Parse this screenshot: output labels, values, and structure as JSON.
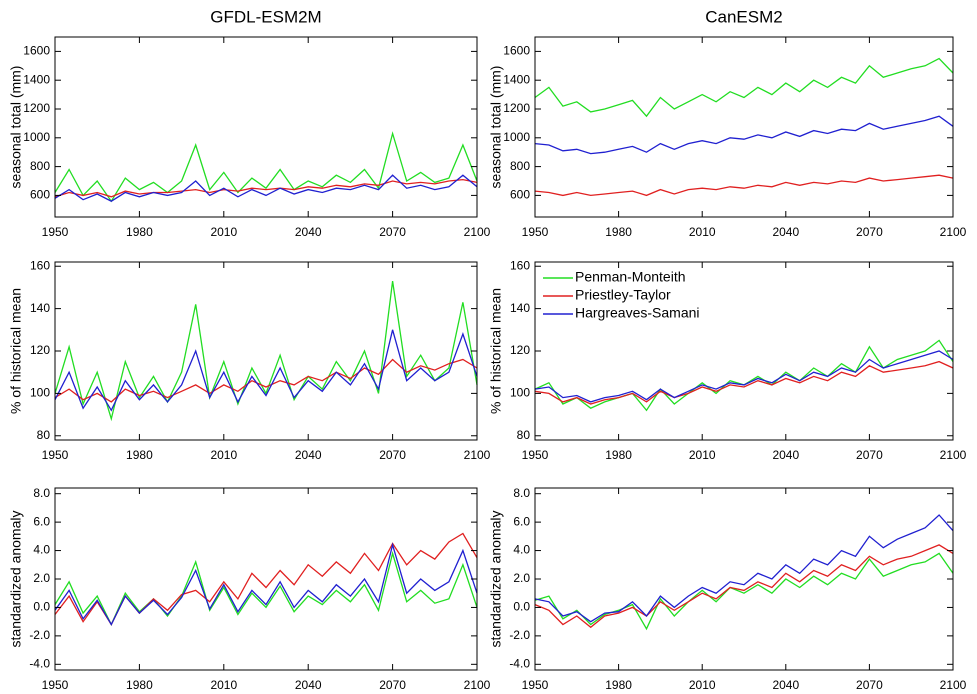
{
  "chart_data": [
    {
      "type": "line",
      "title": "GFDL-ESM2M",
      "y_label": "seasonal total (mm)",
      "x": [
        1950,
        1955,
        1960,
        1965,
        1970,
        1975,
        1980,
        1985,
        1990,
        1995,
        2000,
        2005,
        2010,
        2015,
        2020,
        2025,
        2030,
        2035,
        2040,
        2045,
        2050,
        2055,
        2060,
        2065,
        2070,
        2075,
        2080,
        2085,
        2090,
        2095,
        2100
      ],
      "xlim": [
        1950,
        2100
      ],
      "xticks": [
        1950,
        1980,
        2010,
        2040,
        2070,
        2100
      ],
      "ylim": [
        450,
        1700
      ],
      "yticks": [
        600,
        800,
        1000,
        1200,
        1400,
        1600
      ],
      "series": [
        {
          "color": "#22dd22",
          "values": [
            620,
            780,
            600,
            700,
            560,
            720,
            640,
            690,
            620,
            700,
            950,
            640,
            760,
            620,
            720,
            650,
            780,
            640,
            700,
            660,
            740,
            690,
            780,
            650,
            1030,
            700,
            760,
            690,
            720,
            950,
            700
          ]
        },
        {
          "color": "#e02020",
          "values": [
            590,
            620,
            600,
            620,
            590,
            630,
            610,
            620,
            620,
            630,
            640,
            620,
            640,
            630,
            650,
            640,
            650,
            640,
            660,
            650,
            670,
            660,
            680,
            670,
            700,
            680,
            690,
            680,
            700,
            710,
            690
          ]
        },
        {
          "color": "#2020d0",
          "values": [
            580,
            640,
            570,
            610,
            560,
            620,
            590,
            620,
            600,
            620,
            700,
            600,
            650,
            590,
            640,
            600,
            650,
            610,
            640,
            620,
            650,
            640,
            670,
            640,
            740,
            650,
            670,
            640,
            660,
            740,
            660
          ]
        }
      ]
    },
    {
      "type": "line",
      "title": "CanESM2",
      "y_label": "seasonal total (mm)",
      "x": [
        1950,
        1955,
        1960,
        1965,
        1970,
        1975,
        1980,
        1985,
        1990,
        1995,
        2000,
        2005,
        2010,
        2015,
        2020,
        2025,
        2030,
        2035,
        2040,
        2045,
        2050,
        2055,
        2060,
        2065,
        2070,
        2075,
        2080,
        2085,
        2090,
        2095,
        2100
      ],
      "xlim": [
        1950,
        2100
      ],
      "xticks": [
        1950,
        1980,
        2010,
        2040,
        2070,
        2100
      ],
      "ylim": [
        450,
        1700
      ],
      "yticks": [
        600,
        800,
        1000,
        1200,
        1400,
        1600
      ],
      "series": [
        {
          "color": "#22dd22",
          "values": [
            1280,
            1350,
            1220,
            1250,
            1180,
            1200,
            1230,
            1260,
            1150,
            1280,
            1200,
            1250,
            1300,
            1250,
            1320,
            1280,
            1350,
            1300,
            1380,
            1320,
            1400,
            1350,
            1420,
            1380,
            1500,
            1420,
            1450,
            1480,
            1500,
            1550,
            1450
          ]
        },
        {
          "color": "#e02020",
          "values": [
            630,
            620,
            600,
            620,
            600,
            610,
            620,
            630,
            600,
            640,
            610,
            640,
            650,
            640,
            660,
            650,
            670,
            660,
            690,
            670,
            690,
            680,
            700,
            690,
            720,
            700,
            710,
            720,
            730,
            740,
            720
          ]
        },
        {
          "color": "#2020d0",
          "values": [
            960,
            950,
            910,
            920,
            890,
            900,
            920,
            940,
            900,
            960,
            920,
            960,
            980,
            960,
            1000,
            990,
            1020,
            1000,
            1040,
            1010,
            1050,
            1030,
            1060,
            1050,
            1100,
            1060,
            1080,
            1100,
            1120,
            1150,
            1080
          ]
        }
      ]
    },
    {
      "type": "line",
      "y_label": "% of historical mean",
      "x": [
        1950,
        1955,
        1960,
        1965,
        1970,
        1975,
        1980,
        1985,
        1990,
        1995,
        2000,
        2005,
        2010,
        2015,
        2020,
        2025,
        2030,
        2035,
        2040,
        2045,
        2050,
        2055,
        2060,
        2065,
        2070,
        2075,
        2080,
        2085,
        2090,
        2095,
        2100
      ],
      "xlim": [
        1950,
        2100
      ],
      "xticks": [
        1950,
        1980,
        2010,
        2040,
        2070,
        2100
      ],
      "ylim": [
        78,
        162
      ],
      "yticks": [
        80,
        100,
        120,
        140,
        160
      ],
      "series": [
        {
          "color": "#22dd22",
          "values": [
            100,
            122,
            95,
            110,
            88,
            115,
            98,
            108,
            96,
            110,
            142,
            98,
            115,
            95,
            112,
            100,
            118,
            97,
            108,
            102,
            115,
            106,
            120,
            100,
            153,
            108,
            118,
            106,
            112,
            143,
            104
          ]
        },
        {
          "color": "#e02020",
          "values": [
            98,
            102,
            97,
            100,
            96,
            102,
            99,
            101,
            98,
            101,
            104,
            100,
            104,
            101,
            106,
            103,
            106,
            104,
            108,
            106,
            110,
            107,
            112,
            109,
            116,
            110,
            113,
            111,
            114,
            116,
            112
          ]
        },
        {
          "color": "#2020d0",
          "values": [
            97,
            110,
            93,
            103,
            92,
            106,
            97,
            104,
            96,
            104,
            120,
            98,
            110,
            96,
            108,
            99,
            112,
            98,
            106,
            101,
            110,
            104,
            114,
            102,
            130,
            106,
            112,
            106,
            110,
            128,
            108
          ]
        }
      ]
    },
    {
      "type": "line",
      "y_label": "% of historical mean",
      "legend": "upper left",
      "x": [
        1950,
        1955,
        1960,
        1965,
        1970,
        1975,
        1980,
        1985,
        1990,
        1995,
        2000,
        2005,
        2010,
        2015,
        2020,
        2025,
        2030,
        2035,
        2040,
        2045,
        2050,
        2055,
        2060,
        2065,
        2070,
        2075,
        2080,
        2085,
        2090,
        2095,
        2100
      ],
      "xlim": [
        1950,
        2100
      ],
      "xticks": [
        1950,
        1980,
        2010,
        2040,
        2070,
        2100
      ],
      "ylim": [
        78,
        162
      ],
      "yticks": [
        80,
        100,
        120,
        140,
        160
      ],
      "series": [
        {
          "name": "Penman-Monteith",
          "color": "#22dd22",
          "values": [
            102,
            105,
            95,
            98,
            93,
            96,
            98,
            100,
            92,
            102,
            95,
            100,
            105,
            100,
            106,
            104,
            108,
            104,
            110,
            106,
            112,
            108,
            114,
            110,
            122,
            112,
            116,
            118,
            120,
            125,
            115
          ]
        },
        {
          "name": "Priestley-Taylor",
          "color": "#e02020",
          "values": [
            101,
            100,
            96,
            98,
            95,
            97,
            98,
            100,
            96,
            101,
            98,
            100,
            103,
            101,
            104,
            103,
            106,
            104,
            107,
            105,
            108,
            106,
            110,
            108,
            113,
            110,
            111,
            112,
            113,
            115,
            112
          ]
        },
        {
          "name": "Hargreaves-Samani",
          "color": "#2020d0",
          "values": [
            102,
            103,
            98,
            99,
            96,
            98,
            99,
            101,
            97,
            102,
            98,
            101,
            104,
            102,
            105,
            104,
            107,
            105,
            109,
            106,
            110,
            108,
            112,
            110,
            116,
            112,
            114,
            116,
            118,
            120,
            116
          ]
        }
      ]
    },
    {
      "type": "line",
      "y_label": "standardized anomaly",
      "x": [
        1950,
        1955,
        1960,
        1965,
        1970,
        1975,
        1980,
        1985,
        1990,
        1995,
        2000,
        2005,
        2010,
        2015,
        2020,
        2025,
        2030,
        2035,
        2040,
        2045,
        2050,
        2055,
        2060,
        2065,
        2070,
        2075,
        2080,
        2085,
        2090,
        2095,
        2100
      ],
      "xlim": [
        1950,
        2100
      ],
      "xticks": [
        1950,
        1980,
        2010,
        2040,
        2070,
        2100
      ],
      "ylim": [
        -4.4,
        8.4
      ],
      "yticks": [
        {
          "value": -4,
          "label": "-4.0"
        },
        {
          "value": -2,
          "label": "-2.0"
        },
        {
          "value": 0,
          "label": "0.0"
        },
        {
          "value": 2,
          "label": "2.0"
        },
        {
          "value": 4,
          "label": "4.0"
        },
        {
          "value": 6,
          "label": "6.0"
        },
        {
          "value": 8,
          "label": "8.0"
        }
      ],
      "series": [
        {
          "color": "#22dd22",
          "values": [
            0.2,
            1.8,
            -0.4,
            0.8,
            -1.2,
            1.0,
            -0.3,
            0.6,
            -0.6,
            0.8,
            3.2,
            -0.2,
            1.4,
            -0.5,
            1.0,
            0.0,
            1.5,
            -0.3,
            0.8,
            0.2,
            1.2,
            0.4,
            1.6,
            -0.2,
            3.8,
            0.4,
            1.2,
            0.3,
            0.6,
            3.0,
            0.0
          ]
        },
        {
          "color": "#e02020",
          "values": [
            -0.5,
            0.8,
            -1.0,
            0.4,
            -1.2,
            0.8,
            -0.4,
            0.6,
            -0.2,
            0.9,
            1.2,
            0.4,
            1.8,
            0.6,
            2.4,
            1.4,
            2.6,
            1.6,
            3.0,
            2.2,
            3.2,
            2.4,
            3.8,
            2.6,
            4.5,
            3.0,
            4.0,
            3.4,
            4.6,
            5.2,
            3.5
          ]
        },
        {
          "color": "#2020d0",
          "values": [
            -0.2,
            1.2,
            -0.8,
            0.5,
            -1.2,
            0.8,
            -0.4,
            0.5,
            -0.5,
            0.7,
            2.6,
            -0.1,
            1.6,
            -0.3,
            1.2,
            0.2,
            1.8,
            0.0,
            1.2,
            0.4,
            1.6,
            0.8,
            2.0,
            0.4,
            4.4,
            1.0,
            2.0,
            1.2,
            1.8,
            4.0,
            1.0
          ]
        }
      ]
    },
    {
      "type": "line",
      "y_label": "standardized anomaly",
      "x": [
        1950,
        1955,
        1960,
        1965,
        1970,
        1975,
        1980,
        1985,
        1990,
        1995,
        2000,
        2005,
        2010,
        2015,
        2020,
        2025,
        2030,
        2035,
        2040,
        2045,
        2050,
        2055,
        2060,
        2065,
        2070,
        2075,
        2080,
        2085,
        2090,
        2095,
        2100
      ],
      "xlim": [
        1950,
        2100
      ],
      "xticks": [
        1950,
        1980,
        2010,
        2040,
        2070,
        2100
      ],
      "ylim": [
        -4.4,
        8.4
      ],
      "yticks": [
        {
          "value": -4,
          "label": "-4.0"
        },
        {
          "value": -2,
          "label": "-2.0"
        },
        {
          "value": 0,
          "label": "0.0"
        },
        {
          "value": 2,
          "label": "2.0"
        },
        {
          "value": 4,
          "label": "4.0"
        },
        {
          "value": 6,
          "label": "6.0"
        },
        {
          "value": 8,
          "label": "8.0"
        }
      ],
      "series": [
        {
          "color": "#22dd22",
          "values": [
            0.5,
            0.8,
            -0.8,
            -0.2,
            -1.2,
            -0.5,
            -0.2,
            0.2,
            -1.5,
            0.6,
            -0.6,
            0.4,
            1.2,
            0.4,
            1.4,
            1.0,
            1.6,
            1.0,
            2.0,
            1.4,
            2.2,
            1.6,
            2.4,
            2.0,
            3.4,
            2.2,
            2.6,
            3.0,
            3.2,
            3.8,
            2.4
          ]
        },
        {
          "color": "#e02020",
          "values": [
            0.2,
            -0.2,
            -1.2,
            -0.6,
            -1.4,
            -0.6,
            -0.4,
            0.0,
            -0.6,
            0.4,
            -0.2,
            0.4,
            1.0,
            0.6,
            1.4,
            1.2,
            1.8,
            1.4,
            2.4,
            1.8,
            2.6,
            2.2,
            3.0,
            2.6,
            3.6,
            3.0,
            3.4,
            3.6,
            4.0,
            4.4,
            3.8
          ]
        },
        {
          "color": "#2020d0",
          "values": [
            0.6,
            0.4,
            -0.6,
            -0.3,
            -1.0,
            -0.4,
            -0.3,
            0.4,
            -0.6,
            0.8,
            0.0,
            0.8,
            1.4,
            1.0,
            1.8,
            1.6,
            2.4,
            2.0,
            3.0,
            2.4,
            3.4,
            3.0,
            4.0,
            3.6,
            5.0,
            4.2,
            4.8,
            5.2,
            5.6,
            6.5,
            5.4
          ]
        }
      ]
    }
  ]
}
